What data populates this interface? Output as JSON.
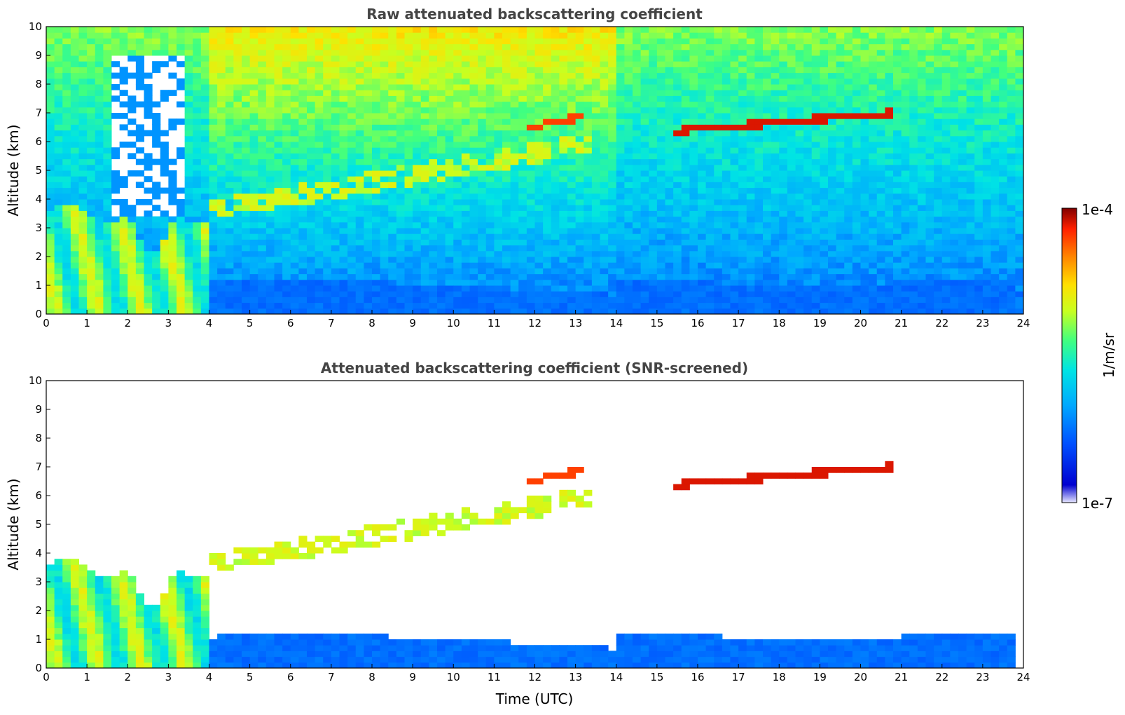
{
  "chart_data": [
    {
      "type": "heatmap",
      "title": "Raw attenuated backscattering coefficient",
      "xlabel": "",
      "ylabel": "Altitude (km)",
      "xlim": [
        0,
        24
      ],
      "ylim": [
        0,
        10
      ],
      "xticks": [
        "0",
        "1",
        "2",
        "3",
        "4",
        "5",
        "6",
        "7",
        "8",
        "9",
        "10",
        "11",
        "12",
        "13",
        "14",
        "15",
        "16",
        "17",
        "18",
        "19",
        "20",
        "21",
        "22",
        "23",
        "24"
      ],
      "yticks": [
        "0",
        "1",
        "2",
        "3",
        "4",
        "5",
        "6",
        "7",
        "8",
        "9",
        "10"
      ],
      "screened": false
    },
    {
      "type": "heatmap",
      "title": "Attenuated backscattering coefficient (SNR-screened)",
      "xlabel": "Time (UTC)",
      "ylabel": "Altitude (km)",
      "xlim": [
        0,
        24
      ],
      "ylim": [
        0,
        10
      ],
      "xticks": [
        "0",
        "1",
        "2",
        "3",
        "4",
        "5",
        "6",
        "7",
        "8",
        "9",
        "10",
        "11",
        "12",
        "13",
        "14",
        "15",
        "16",
        "17",
        "18",
        "19",
        "20",
        "21",
        "22",
        "23",
        "24"
      ],
      "yticks": [
        "0",
        "1",
        "2",
        "3",
        "4",
        "5",
        "6",
        "7",
        "8",
        "9",
        "10"
      ],
      "screened": true
    }
  ],
  "colorbar": {
    "max_label": "1e-4",
    "min_label": "1e-7",
    "label": "1/m/sr",
    "colors": [
      "#e6e6ff",
      "#0000cd",
      "#0050ff",
      "#00a0ff",
      "#00e0e0",
      "#40ff80",
      "#c0ff20",
      "#ffe000",
      "#ff8000",
      "#ff2000",
      "#b00000",
      "#800000"
    ]
  }
}
